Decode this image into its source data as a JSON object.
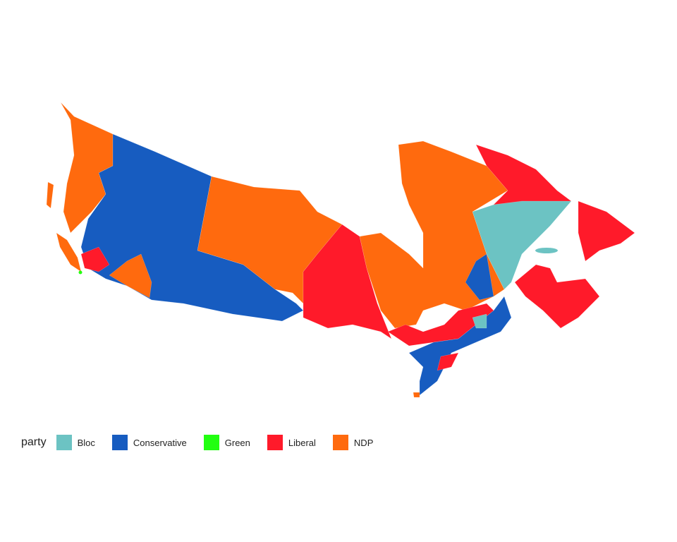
{
  "legend": {
    "title": "party",
    "items": [
      {
        "label": "Bloc",
        "color": "#6CC3C3"
      },
      {
        "label": "Conservative",
        "color": "#175CC0"
      },
      {
        "label": "Green",
        "color": "#22FF11"
      },
      {
        "label": "Liberal",
        "color": "#FF1A2A"
      },
      {
        "label": "NDP",
        "color": "#FF6A0E"
      }
    ]
  }
}
